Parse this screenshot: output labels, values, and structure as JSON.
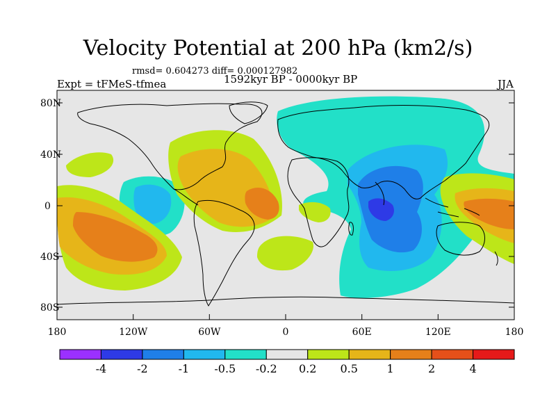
{
  "title": "Velocity Potential at 200 hPa (km2/s)",
  "stats": "rmsd= 0.604273 diff= 0.000127982",
  "experiment": "Expt = tFMeS-tfmea",
  "period": "1592kyr BP - 0000kyr BP",
  "season": "JJA",
  "map": {
    "lon_range": [
      -180,
      180
    ],
    "lat_range": [
      -90,
      90
    ],
    "lat_tick_labels": [
      "80N",
      "40N",
      "0",
      "40S",
      "80S"
    ],
    "lon_tick_labels": [
      "180",
      "120W",
      "60W",
      "0",
      "60E",
      "120E",
      "180"
    ],
    "background_color": "#e6e6e6"
  },
  "colorbar": {
    "colors": [
      "#9b30ff",
      "#2e3ae6",
      "#1f7fe8",
      "#21b8ee",
      "#22e0c8",
      "#e6e6e6",
      "#bde619",
      "#e6b519",
      "#e6801a",
      "#e6501a",
      "#e61a1a"
    ],
    "labels": [
      "-4",
      "-2",
      "-1",
      "-0.5",
      "-0.2",
      "0.2",
      "0.5",
      "1",
      "2",
      "4"
    ]
  },
  "colors": {
    "land_outline": "#000000",
    "frame": "#000000"
  }
}
